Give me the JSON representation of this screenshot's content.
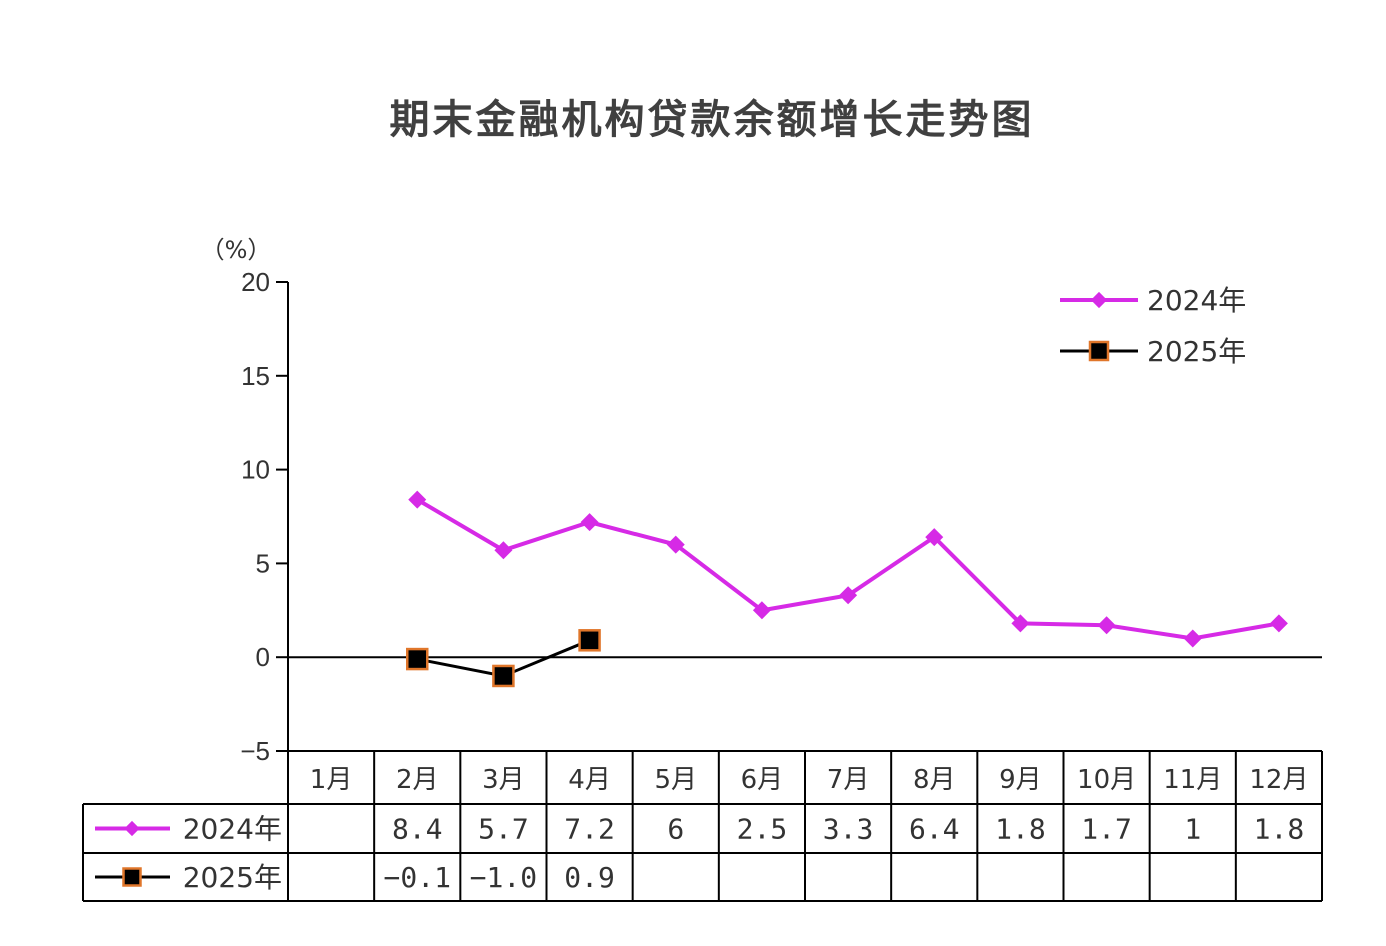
{
  "chart_data": {
    "type": "line",
    "title": "期末金融机构贷款余额增长走势图",
    "ylabel": "（%）",
    "xlabel": "",
    "ylim": [
      -5,
      20
    ],
    "yticks": [
      "20",
      "15",
      "10",
      "5",
      "0",
      "−5"
    ],
    "grid": false,
    "legend_position": "top-right",
    "categories": [
      "1月",
      "2月",
      "3月",
      "4月",
      "5月",
      "6月",
      "7月",
      "8月",
      "9月",
      "10月",
      "11月",
      "12月"
    ],
    "series": [
      {
        "name": "2024年",
        "marker": "diamond",
        "color": "#d62ae6",
        "values": [
          null,
          8.4,
          5.7,
          7.2,
          6,
          2.5,
          3.3,
          6.4,
          1.8,
          1.7,
          1,
          1.8
        ],
        "labels": [
          "",
          "8.4",
          "5.7",
          "7.2",
          "6",
          "2.5",
          "3.3",
          "6.4",
          "1.8",
          "1.7",
          "1",
          "1.8"
        ]
      },
      {
        "name": "2025年",
        "marker": "square",
        "color": "#000000",
        "marker_edge_color": "#e0762a",
        "values": [
          null,
          -0.1,
          -1.0,
          0.9,
          null,
          null,
          null,
          null,
          null,
          null,
          null,
          null
        ],
        "labels": [
          "",
          "−0.1",
          "−1.0",
          "0.9",
          "",
          "",
          "",
          "",
          "",
          "",
          "",
          ""
        ]
      }
    ]
  }
}
